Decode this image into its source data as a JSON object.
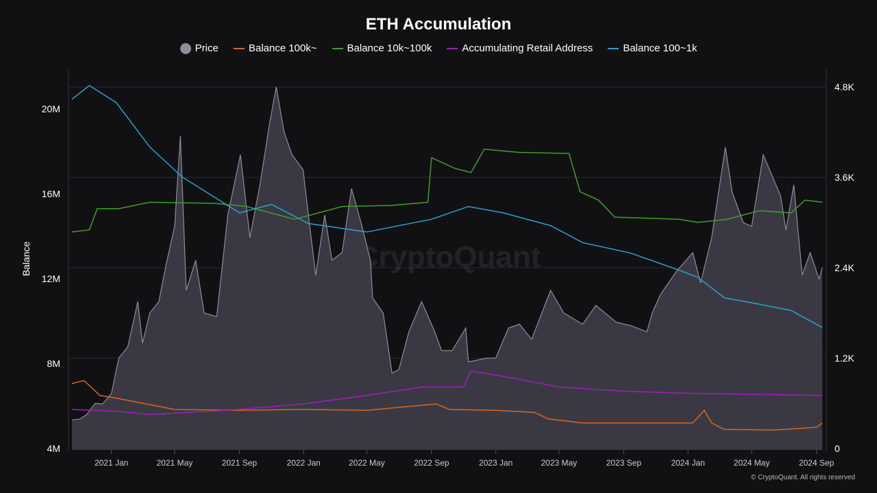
{
  "chart_data": {
    "type": "line",
    "title": "ETH Accumulation",
    "watermark": "CryptoQuant",
    "copyright": "© CryptoQuant. All rights reserved",
    "ylabel_left": "Balance",
    "left_ticks": [
      "4M",
      "8M",
      "12M",
      "16M",
      "20M"
    ],
    "left_tick_values": [
      4,
      8,
      12,
      16,
      20
    ],
    "right_ticks": [
      "0",
      "1.2K",
      "2.4K",
      "3.6K",
      "4.8K"
    ],
    "right_tick_values": [
      0,
      1200,
      2400,
      3600,
      4800
    ],
    "x_ticks": [
      {
        "label": "2021 Jan",
        "date": "2021-01-01"
      },
      {
        "label": "2021 May",
        "date": "2021-05-01"
      },
      {
        "label": "2021 Sep",
        "date": "2021-09-01"
      },
      {
        "label": "2022 Jan",
        "date": "2022-01-01"
      },
      {
        "label": "2022 May",
        "date": "2022-05-01"
      },
      {
        "label": "2022 Sep",
        "date": "2022-09-01"
      },
      {
        "label": "2023 Jan",
        "date": "2023-01-01"
      },
      {
        "label": "2023 May",
        "date": "2023-05-01"
      },
      {
        "label": "2023 Sep",
        "date": "2023-09-01"
      },
      {
        "label": "2024 Jan",
        "date": "2024-01-01"
      },
      {
        "label": "2024 May",
        "date": "2024-05-01"
      },
      {
        "label": "2024 Sep",
        "date": "2024-09-01"
      }
    ],
    "grid": true,
    "legend_position": "top-center",
    "series": [
      {
        "name": "Price",
        "axis": "right",
        "kind": "area",
        "color": "#8e8d99",
        "unit": "USD",
        "points": [
          [
            "2020-10-18",
            380
          ],
          [
            "2020-11-01",
            390
          ],
          [
            "2020-11-15",
            450
          ],
          [
            "2020-12-01",
            600
          ],
          [
            "2020-12-15",
            590
          ],
          [
            "2021-01-01",
            730
          ],
          [
            "2021-01-15",
            1200
          ],
          [
            "2021-02-01",
            1350
          ],
          [
            "2021-02-20",
            1950
          ],
          [
            "2021-03-01",
            1400
          ],
          [
            "2021-03-15",
            1800
          ],
          [
            "2021-04-01",
            1950
          ],
          [
            "2021-04-15",
            2450
          ],
          [
            "2021-05-01",
            2950
          ],
          [
            "2021-05-12",
            4150
          ],
          [
            "2021-05-23",
            2100
          ],
          [
            "2021-06-10",
            2500
          ],
          [
            "2021-06-26",
            1800
          ],
          [
            "2021-07-20",
            1750
          ],
          [
            "2021-08-10",
            3100
          ],
          [
            "2021-09-03",
            3900
          ],
          [
            "2021-09-21",
            2800
          ],
          [
            "2021-10-10",
            3500
          ],
          [
            "2021-10-28",
            4300
          ],
          [
            "2021-11-10",
            4800
          ],
          [
            "2021-11-25",
            4200
          ],
          [
            "2021-12-10",
            3900
          ],
          [
            "2021-12-31",
            3700
          ],
          [
            "2022-01-10",
            3100
          ],
          [
            "2022-01-24",
            2300
          ],
          [
            "2022-02-10",
            3100
          ],
          [
            "2022-02-24",
            2500
          ],
          [
            "2022-03-15",
            2600
          ],
          [
            "2022-04-02",
            3450
          ],
          [
            "2022-04-20",
            3000
          ],
          [
            "2022-05-08",
            2500
          ],
          [
            "2022-05-12",
            2000
          ],
          [
            "2022-06-01",
            1800
          ],
          [
            "2022-06-18",
            1000
          ],
          [
            "2022-07-01",
            1050
          ],
          [
            "2022-07-20",
            1550
          ],
          [
            "2022-08-13",
            1950
          ],
          [
            "2022-09-07",
            1550
          ],
          [
            "2022-09-20",
            1300
          ],
          [
            "2022-10-10",
            1300
          ],
          [
            "2022-11-05",
            1600
          ],
          [
            "2022-11-10",
            1150
          ],
          [
            "2022-12-15",
            1200
          ],
          [
            "2023-01-01",
            1200
          ],
          [
            "2023-01-25",
            1600
          ],
          [
            "2023-02-15",
            1650
          ],
          [
            "2023-03-10",
            1450
          ],
          [
            "2023-04-15",
            2100
          ],
          [
            "2023-05-10",
            1800
          ],
          [
            "2023-06-15",
            1650
          ],
          [
            "2023-07-10",
            1900
          ],
          [
            "2023-08-17",
            1680
          ],
          [
            "2023-09-15",
            1630
          ],
          [
            "2023-10-15",
            1550
          ],
          [
            "2023-10-25",
            1800
          ],
          [
            "2023-11-10",
            2050
          ],
          [
            "2023-12-10",
            2350
          ],
          [
            "2024-01-10",
            2600
          ],
          [
            "2024-01-25",
            2200
          ],
          [
            "2024-02-15",
            2800
          ],
          [
            "2024-03-12",
            4000
          ],
          [
            "2024-03-25",
            3400
          ],
          [
            "2024-04-15",
            3000
          ],
          [
            "2024-05-01",
            2950
          ],
          [
            "2024-05-23",
            3900
          ],
          [
            "2024-06-10",
            3600
          ],
          [
            "2024-06-25",
            3350
          ],
          [
            "2024-07-05",
            2900
          ],
          [
            "2024-07-20",
            3500
          ],
          [
            "2024-08-05",
            2300
          ],
          [
            "2024-08-20",
            2600
          ],
          [
            "2024-09-06",
            2250
          ],
          [
            "2024-09-12",
            2400
          ]
        ]
      },
      {
        "name": "Balance 100k~",
        "axis": "left",
        "kind": "line",
        "color": "#d9651c",
        "unit": "M",
        "points": [
          [
            "2020-10-18",
            7.06
          ],
          [
            "2020-11-10",
            7.2
          ],
          [
            "2020-12-10",
            6.5
          ],
          [
            "2021-01-15",
            6.35
          ],
          [
            "2021-05-01",
            5.84
          ],
          [
            "2021-09-01",
            5.8
          ],
          [
            "2022-01-01",
            5.84
          ],
          [
            "2022-05-01",
            5.8
          ],
          [
            "2022-09-10",
            6.1
          ],
          [
            "2022-10-05",
            5.84
          ],
          [
            "2023-01-01",
            5.8
          ],
          [
            "2023-03-15",
            5.7
          ],
          [
            "2023-04-10",
            5.4
          ],
          [
            "2023-06-15",
            5.2
          ],
          [
            "2024-01-10",
            5.2
          ],
          [
            "2024-02-01",
            5.8
          ],
          [
            "2024-02-15",
            5.2
          ],
          [
            "2024-03-10",
            4.9
          ],
          [
            "2024-06-15",
            4.87
          ],
          [
            "2024-09-01",
            5.0
          ],
          [
            "2024-09-12",
            5.2
          ]
        ]
      },
      {
        "name": "Balance 10k~100k",
        "axis": "left",
        "kind": "line",
        "color": "#3fa02a",
        "unit": "M",
        "points": [
          [
            "2020-10-18",
            14.2
          ],
          [
            "2020-11-20",
            14.3
          ],
          [
            "2020-12-05",
            15.3
          ],
          [
            "2021-01-15",
            15.3
          ],
          [
            "2021-03-15",
            15.6
          ],
          [
            "2021-07-15",
            15.55
          ],
          [
            "2021-09-15",
            15.4
          ],
          [
            "2021-12-15",
            14.8
          ],
          [
            "2022-03-15",
            15.4
          ],
          [
            "2022-06-15",
            15.45
          ],
          [
            "2022-08-25",
            15.6
          ],
          [
            "2022-09-01",
            17.7
          ],
          [
            "2022-10-15",
            17.2
          ],
          [
            "2022-11-15",
            17.0
          ],
          [
            "2022-12-10",
            18.1
          ],
          [
            "2023-02-15",
            17.95
          ],
          [
            "2023-05-20",
            17.9
          ],
          [
            "2023-06-10",
            16.1
          ],
          [
            "2023-07-15",
            15.7
          ],
          [
            "2023-08-15",
            14.9
          ],
          [
            "2023-12-15",
            14.8
          ],
          [
            "2024-01-20",
            14.65
          ],
          [
            "2024-03-15",
            14.8
          ],
          [
            "2024-05-15",
            15.2
          ],
          [
            "2024-07-15",
            15.1
          ],
          [
            "2024-08-10",
            15.7
          ],
          [
            "2024-09-12",
            15.6
          ]
        ]
      },
      {
        "name": "Accumulating Retail Address",
        "axis": "left",
        "kind": "line",
        "color": "#a01fbf",
        "unit": "M",
        "points": [
          [
            "2020-10-18",
            5.84
          ],
          [
            "2021-01-15",
            5.75
          ],
          [
            "2021-03-15",
            5.6
          ],
          [
            "2021-09-01",
            5.84
          ],
          [
            "2022-01-01",
            6.1
          ],
          [
            "2022-05-01",
            6.5
          ],
          [
            "2022-08-15",
            6.9
          ],
          [
            "2022-11-01",
            6.9
          ],
          [
            "2022-11-15",
            7.65
          ],
          [
            "2023-01-15",
            7.4
          ],
          [
            "2023-05-01",
            6.9
          ],
          [
            "2023-09-01",
            6.7
          ],
          [
            "2024-01-01",
            6.6
          ],
          [
            "2024-09-12",
            6.5
          ]
        ]
      },
      {
        "name": "Balance 100~1k",
        "axis": "left",
        "kind": "line",
        "color": "#2ba3c9",
        "unit": "M",
        "points": [
          [
            "2020-10-18",
            20.45
          ],
          [
            "2020-11-20",
            21.1
          ],
          [
            "2021-01-10",
            20.3
          ],
          [
            "2021-03-15",
            18.2
          ],
          [
            "2021-05-15",
            16.8
          ],
          [
            "2021-09-01",
            15.1
          ],
          [
            "2021-11-01",
            15.5
          ],
          [
            "2022-01-10",
            14.6
          ],
          [
            "2022-05-01",
            14.2
          ],
          [
            "2022-09-01",
            14.8
          ],
          [
            "2022-11-10",
            15.4
          ],
          [
            "2023-01-15",
            15.1
          ],
          [
            "2023-04-15",
            14.5
          ],
          [
            "2023-06-15",
            13.7
          ],
          [
            "2023-09-15",
            13.2
          ],
          [
            "2023-12-15",
            12.4
          ],
          [
            "2024-01-20",
            12.06
          ],
          [
            "2024-03-10",
            11.1
          ],
          [
            "2024-05-15",
            10.8
          ],
          [
            "2024-07-15",
            10.5
          ],
          [
            "2024-09-12",
            9.7
          ]
        ]
      }
    ]
  }
}
